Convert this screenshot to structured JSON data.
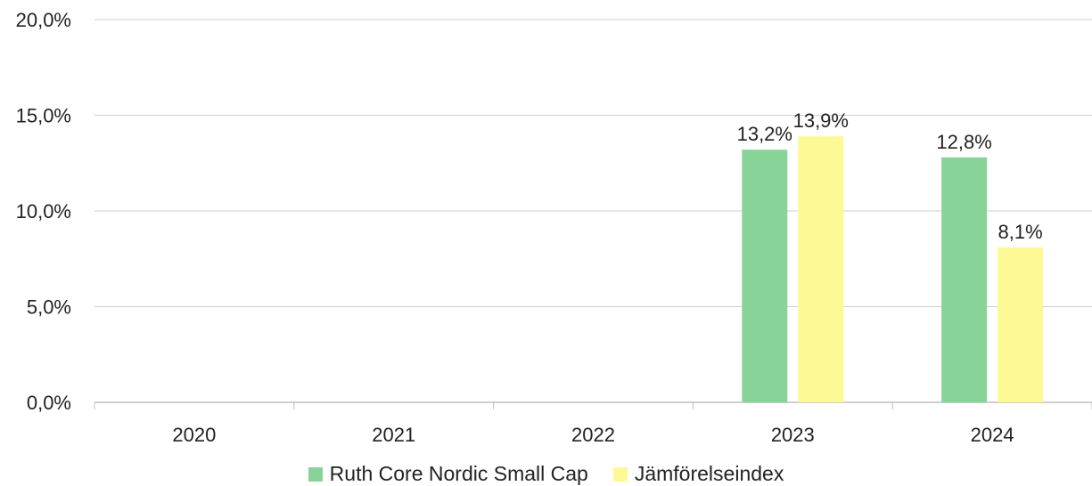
{
  "chart_data": {
    "type": "bar",
    "categories": [
      "2020",
      "2021",
      "2022",
      "2023",
      "2024"
    ],
    "series": [
      {
        "name": "Ruth Core Nordic Small Cap",
        "color": "#88d498",
        "values": [
          null,
          null,
          null,
          13.2,
          12.8
        ],
        "labels": [
          "",
          "",
          "",
          "13,2%",
          "12,8%"
        ]
      },
      {
        "name": "Jämförelseindex",
        "color": "#fdf995",
        "values": [
          null,
          null,
          null,
          13.9,
          8.1
        ],
        "labels": [
          "",
          "",
          "",
          "13,9%",
          "8,1%"
        ]
      }
    ],
    "ylim": [
      0,
      20
    ],
    "yticks": [
      0,
      5,
      10,
      15,
      20
    ],
    "ytick_labels": [
      "0,0%",
      "5,0%",
      "10,0%",
      "15,0%",
      "20,0%"
    ],
    "grid": true,
    "legend_position": "bottom"
  }
}
